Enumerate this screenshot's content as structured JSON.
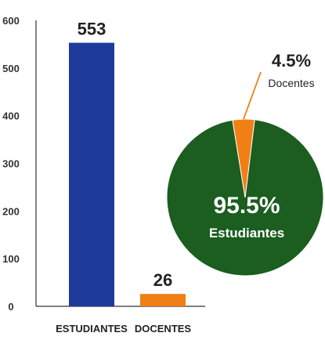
{
  "chart_data": [
    {
      "type": "bar",
      "categories": [
        "ESTUDIANTES",
        "DOCENTES"
      ],
      "values": [
        553,
        26
      ],
      "value_labels": [
        "553",
        "26"
      ],
      "ylim": [
        0,
        600
      ],
      "yticks": [
        0,
        100,
        200,
        300,
        400,
        500,
        600
      ],
      "ytick_labels": [
        "0",
        "100",
        "200",
        "300",
        "400",
        "500",
        "600"
      ],
      "colors": [
        "#1e3a9a",
        "#f07f16"
      ],
      "grid": false
    },
    {
      "type": "pie",
      "slices": [
        {
          "label": "Estudiantes",
          "value": 95.5,
          "value_label": "95.5%",
          "color": "#1b5e20"
        },
        {
          "label": "Docentes",
          "value": 4.5,
          "value_label": "4.5%",
          "color": "#f07f16"
        }
      ]
    }
  ]
}
